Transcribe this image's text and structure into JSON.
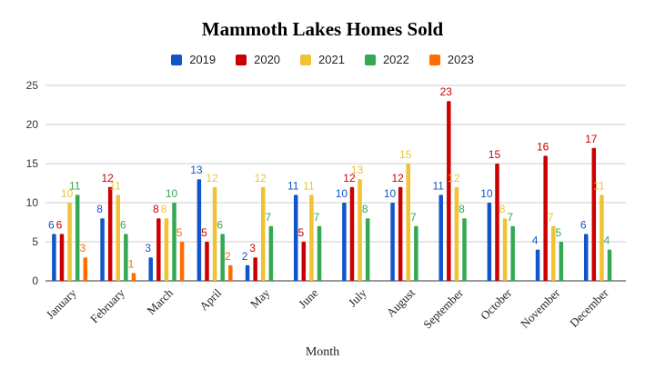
{
  "chart_data": {
    "type": "bar",
    "title": "Mammoth Lakes Homes Sold",
    "xlabel": "Month",
    "ylabel": "",
    "ylim": [
      0,
      25
    ],
    "yticks": [
      0,
      5,
      10,
      15,
      20,
      25
    ],
    "grid": true,
    "legend_position": "top",
    "categories": [
      "January",
      "February",
      "March",
      "April",
      "May",
      "June",
      "July",
      "August",
      "September",
      "October",
      "November",
      "December"
    ],
    "series": [
      {
        "name": "2019",
        "color": "#1155cc",
        "values": [
          6,
          8,
          3,
          13,
          2,
          11,
          10,
          10,
          11,
          10,
          4,
          6
        ]
      },
      {
        "name": "2020",
        "color": "#cc0000",
        "values": [
          6,
          12,
          8,
          5,
          3,
          5,
          12,
          12,
          23,
          15,
          16,
          17
        ]
      },
      {
        "name": "2021",
        "color": "#f1c232",
        "values": [
          10,
          11,
          8,
          12,
          12,
          11,
          13,
          15,
          12,
          8,
          7,
          11
        ]
      },
      {
        "name": "2022",
        "color": "#34a853",
        "values": [
          11,
          6,
          10,
          6,
          7,
          7,
          8,
          7,
          8,
          7,
          5,
          4
        ]
      },
      {
        "name": "2023",
        "color": "#ff6d01",
        "values": [
          3,
          1,
          5,
          2,
          null,
          null,
          null,
          null,
          null,
          null,
          null,
          null
        ]
      }
    ]
  }
}
